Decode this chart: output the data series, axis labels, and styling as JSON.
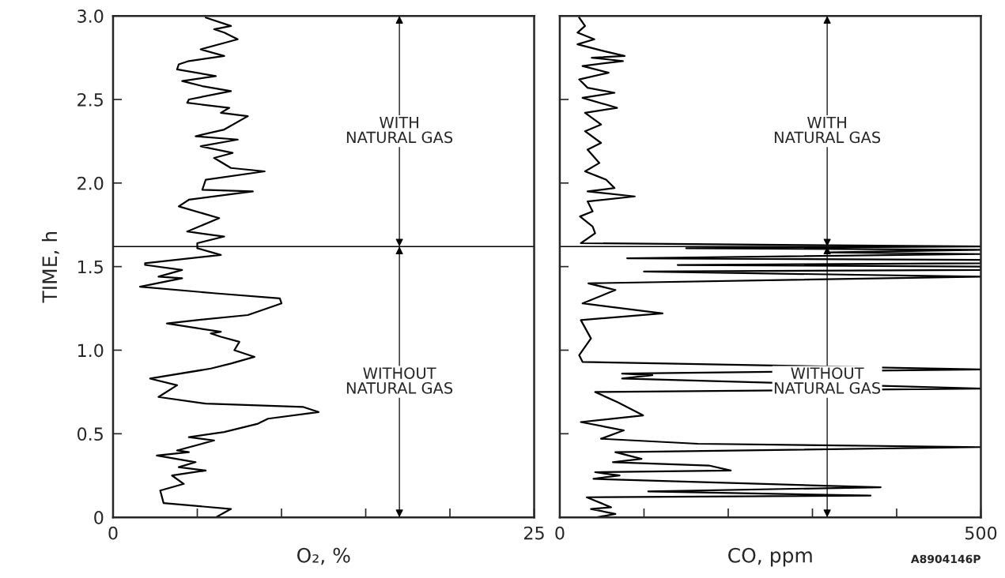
{
  "chart_data": [
    {
      "type": "line",
      "xlabel": "O₂, %",
      "ylabel": "TIME, h",
      "xlim": [
        0,
        25
      ],
      "ylim": [
        0,
        3
      ],
      "xticks": [
        0,
        {
          "value": 5,
          "label": null
        },
        {
          "value": 10,
          "label": null
        },
        {
          "value": 15,
          "label": null
        },
        {
          "value": 20,
          "label": null
        },
        25
      ],
      "yticks": [
        0,
        0.5,
        {
          "value": 1,
          "label": "1.0"
        },
        {
          "value": 1.5,
          "label": "1.5"
        },
        {
          "value": 2,
          "label": "2.0"
        },
        {
          "value": 2.5,
          "label": "2.5"
        },
        {
          "value": 3,
          "label": "3.0"
        }
      ],
      "ref_lines": [
        {
          "axis": "y",
          "value": 1.62,
          "color": "#000000"
        }
      ],
      "annotations": [
        "WITH\nNATURAL GAS",
        "WITHOUT\nNATURAL GAS"
      ],
      "series": [
        {
          "color": "#000000",
          "x": [
            6.1,
            7.0,
            3.0,
            2.8,
            4.2,
            3.5,
            5.5,
            3.9,
            4.9,
            2.6,
            4.5,
            3.8,
            6.0,
            4.5,
            6.6,
            8.6,
            9.2,
            12.2,
            11.3,
            5.5,
            2.7,
            3.8,
            2.2,
            5.8,
            7.0,
            8.4,
            7.2,
            7.5,
            6.4,
            5.8,
            6.4,
            3.2,
            5.0,
            8.0,
            10.0,
            9.9,
            6.1,
            1.6,
            4.1,
            2.7,
            4.1,
            1.9,
            1.9,
            6.4,
            5.0,
            5.0,
            6.6,
            4.4,
            6.3,
            3.9,
            4.5,
            8.3,
            5.3,
            5.5,
            9.0,
            7.0,
            6.0,
            7.1,
            5.2,
            7.4,
            4.9,
            6.6,
            8.0,
            6.4,
            6.9,
            4.4,
            4.5,
            7.0,
            5.3,
            4.1,
            6.1,
            3.8,
            3.9,
            4.5,
            6.6,
            5.2,
            7.4,
            6.6,
            6.0,
            7.0,
            5.5
          ],
          "values": [
            0.0,
            0.05,
            0.085,
            0.16,
            0.2,
            0.25,
            0.28,
            0.3,
            0.33,
            0.37,
            0.39,
            0.4,
            0.46,
            0.48,
            0.51,
            0.56,
            0.59,
            0.63,
            0.66,
            0.68,
            0.72,
            0.79,
            0.83,
            0.89,
            0.92,
            0.96,
            1.0,
            1.05,
            1.08,
            1.1,
            1.11,
            1.16,
            1.18,
            1.21,
            1.28,
            1.31,
            1.34,
            1.38,
            1.43,
            1.44,
            1.48,
            1.51,
            1.52,
            1.57,
            1.61,
            1.64,
            1.68,
            1.71,
            1.79,
            1.86,
            1.9,
            1.95,
            1.96,
            2.02,
            2.07,
            2.09,
            2.15,
            2.18,
            2.22,
            2.26,
            2.28,
            2.32,
            2.4,
            2.42,
            2.45,
            2.48,
            2.5,
            2.55,
            2.58,
            2.61,
            2.64,
            2.68,
            2.71,
            2.73,
            2.76,
            2.8,
            2.86,
            2.9,
            2.92,
            2.94,
            2.99
          ]
        }
      ]
    },
    {
      "type": "line",
      "xlabel": "CO, ppm",
      "xlim": [
        0,
        500
      ],
      "ylim": [
        0,
        3
      ],
      "tick_labels": "x",
      "xticks": [
        0,
        {
          "value": 100,
          "label": null
        },
        {
          "value": 200,
          "label": null
        },
        {
          "value": 300,
          "label": null
        },
        {
          "value": 400,
          "label": null
        },
        500
      ],
      "yticks": [
        0,
        0.5,
        1,
        1.5,
        2,
        2.5,
        3
      ],
      "ref_lines": [
        {
          "axis": "y",
          "value": 1.62,
          "color": "#000000"
        }
      ],
      "annotations": [
        "WITH\nNATURAL GAS",
        "WITHOUT\nNATURAL GAS",
        "A8904146P"
      ],
      "series": [
        {
          "color": "#000000",
          "x": [
            44,
            66,
            37,
            61,
            32,
            369,
            105,
            381,
            305,
            40,
            71,
            42,
            203,
            177,
            63,
            97,
            66,
            500,
            164,
            49,
            76,
            25,
            99,
            68,
            42,
            500,
            74,
            110,
            74,
            500,
            27,
            23,
            37,
            25,
            122,
            27,
            66,
            34,
            500,
            100,
            500,
            500,
            140,
            500,
            500,
            80,
            500,
            320,
            500,
            150,
            500,
            25,
            42,
            39,
            24,
            39,
            33,
            89,
            33,
            65,
            55,
            30,
            47,
            33,
            49,
            30,
            49,
            30,
            68,
            27,
            65,
            33,
            23,
            58,
            27,
            75,
            38,
            77,
            52,
            21,
            41,
            21,
            30,
            23
          ],
          "values": [
            0.0,
            0.02,
            0.05,
            0.06,
            0.12,
            0.13,
            0.155,
            0.18,
            0.19,
            0.23,
            0.25,
            0.27,
            0.28,
            0.31,
            0.33,
            0.35,
            0.39,
            0.42,
            0.44,
            0.47,
            0.52,
            0.57,
            0.61,
            0.69,
            0.75,
            0.77,
            0.83,
            0.85,
            0.86,
            0.885,
            0.93,
            0.97,
            1.07,
            1.18,
            1.22,
            1.28,
            1.36,
            1.4,
            1.44,
            1.47,
            1.48,
            1.5,
            1.51,
            1.52,
            1.54,
            1.55,
            1.575,
            1.585,
            1.6,
            1.61,
            1.62,
            1.64,
            1.7,
            1.74,
            1.8,
            1.83,
            1.89,
            1.92,
            1.95,
            1.97,
            2.02,
            2.07,
            2.12,
            2.2,
            2.24,
            2.31,
            2.35,
            2.42,
            2.45,
            2.51,
            2.54,
            2.57,
            2.62,
            2.66,
            2.7,
            2.73,
            2.75,
            2.76,
            2.79,
            2.83,
            2.86,
            2.9,
            2.94,
            2.99
          ]
        }
      ]
    }
  ]
}
